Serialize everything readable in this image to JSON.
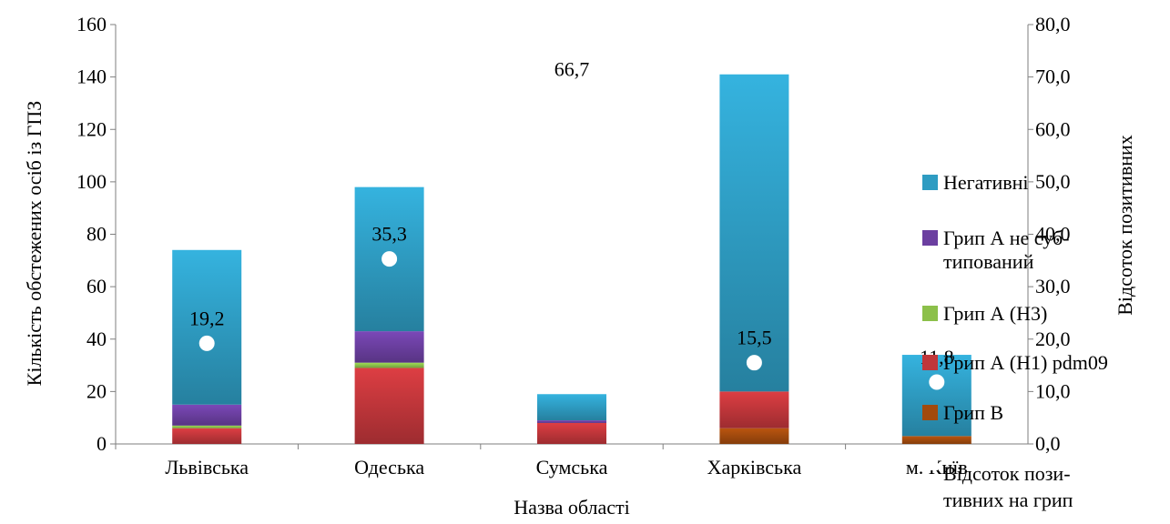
{
  "chart_data": {
    "type": "bar",
    "stacked": true,
    "categories": [
      "Львівська",
      "Одеська",
      "Сумська",
      "Харківська",
      "м. Київ"
    ],
    "series": [
      {
        "name": "Грип В",
        "color": "#a24a0d",
        "values": [
          0,
          0,
          0,
          6,
          3
        ]
      },
      {
        "name": "Грип А (H1) pdm09",
        "color": "#c0363a",
        "values": [
          6,
          29,
          8,
          14,
          0
        ]
      },
      {
        "name": "Грип А (H3)",
        "color": "#8cc04a",
        "values": [
          1,
          2,
          0,
          0,
          0
        ]
      },
      {
        "name": "Грип А не суб-\nтипований",
        "color": "#6b3fa0",
        "values": [
          8,
          12,
          1,
          0,
          0
        ]
      },
      {
        "name": "Негативні",
        "color": "#2e9cc2",
        "values": [
          59,
          55,
          10,
          121,
          31
        ]
      }
    ],
    "line_series": {
      "name": "Відсоток пози-\nтивних на грип",
      "color": "#ffffff",
      "values": [
        19.2,
        35.3,
        66.7,
        15.5,
        11.8
      ],
      "labels": [
        "19,2",
        "35,3",
        "66,7",
        "15,5",
        "11,8"
      ]
    },
    "xlabel": "Назва області",
    "ylabel": "Кількість обстежених осіб із ГПЗ",
    "y2label": "Відсоток позитивних",
    "ylim": [
      0,
      160
    ],
    "y2lim": [
      0,
      80
    ],
    "yticks": [
      "0",
      "20",
      "40",
      "60",
      "80",
      "100",
      "120",
      "140",
      "160"
    ],
    "y2ticks": [
      "0,0",
      "10,0",
      "20,0",
      "30,0",
      "40,0",
      "50,0",
      "60,0",
      "70,0",
      "80,0"
    ],
    "grid": false,
    "legend_position": "right",
    "legend_order": [
      "Негативні",
      "Грип А не суб-\nтипований",
      "Грип А (H3)",
      "Грип А (H1) pdm09",
      "Грип В"
    ]
  }
}
